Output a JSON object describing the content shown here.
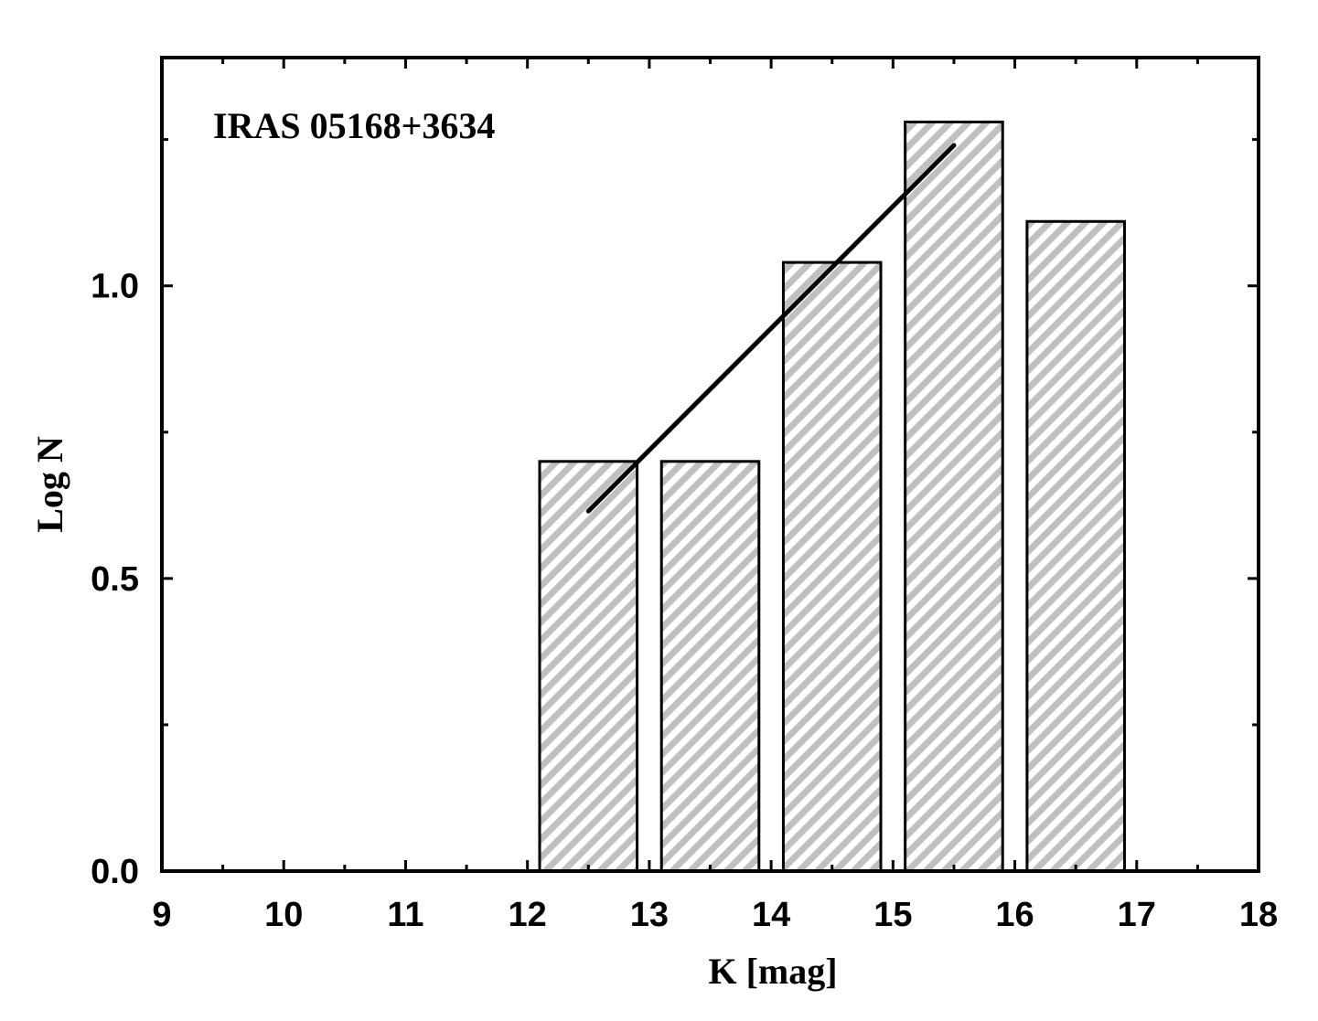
{
  "chart_data": {
    "type": "bar",
    "annotation": "IRAS 05168+3634",
    "xlabel": "K [mag]",
    "ylabel": "Log N",
    "xlim": [
      9,
      18
    ],
    "ylim": [
      0,
      1.39
    ],
    "x_ticks": [
      9,
      10,
      11,
      12,
      13,
      14,
      15,
      16,
      17,
      18
    ],
    "x_tick_labels": [
      "9",
      "10",
      "11",
      "12",
      "13",
      "14",
      "15",
      "16",
      "17",
      "18"
    ],
    "y_ticks": [
      0.0,
      0.5,
      1.0
    ],
    "y_tick_labels": [
      "0.0",
      "0.5",
      "1.0"
    ],
    "y_minor_ticks": [
      0.25,
      0.75,
      1.25
    ],
    "bars": [
      {
        "x_start": 12.1,
        "x_end": 12.9,
        "value": 0.7
      },
      {
        "x_start": 13.1,
        "x_end": 13.9,
        "value": 0.7
      },
      {
        "x_start": 14.1,
        "x_end": 14.9,
        "value": 1.04
      },
      {
        "x_start": 15.1,
        "x_end": 15.9,
        "value": 1.28
      },
      {
        "x_start": 16.1,
        "x_end": 16.9,
        "value": 1.11
      }
    ],
    "fit_line": {
      "x": [
        12.5,
        15.5
      ],
      "y": [
        0.615,
        1.24
      ]
    },
    "bar_fill": "hatched-gray",
    "hatch_color": "#c0c0c0",
    "line_color": "#000000",
    "grid": false,
    "legend": "none"
  }
}
